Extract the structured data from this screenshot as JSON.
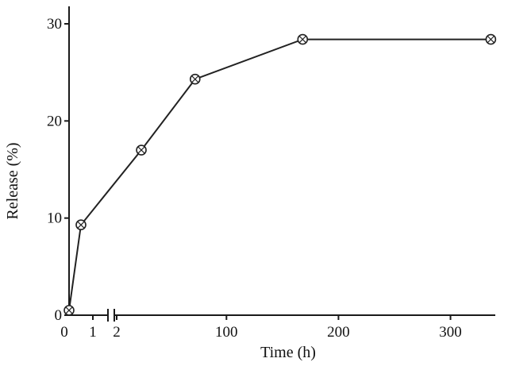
{
  "chart_data": {
    "type": "line",
    "title": "",
    "xlabel": "Time (h)",
    "ylabel": "Release (%)",
    "ylim": [
      0,
      30
    ],
    "yticks": [
      {
        "value": 0,
        "label": "0"
      },
      {
        "value": 10,
        "label": "10"
      },
      {
        "value": 20,
        "label": "20"
      },
      {
        "value": 30,
        "label": "30"
      }
    ],
    "x_axis": {
      "broken": true,
      "segments": [
        {
          "range": [
            0,
            2
          ],
          "ticks": [
            {
              "value": 0,
              "label": "0"
            },
            {
              "value": 1,
              "label": "1"
            },
            {
              "value": 2,
              "label": "2"
            }
          ]
        },
        {
          "range": [
            2,
            340
          ],
          "ticks": [
            {
              "value": 100,
              "label": "100"
            },
            {
              "value": 200,
              "label": "200"
            },
            {
              "value": 300,
              "label": "300"
            }
          ]
        }
      ]
    },
    "grid": false,
    "marker": "circle-cross",
    "line_color": "#222222",
    "series": [
      {
        "points": [
          {
            "x": 0,
            "y": 0.5
          },
          {
            "x": 0.5,
            "y": 9.3
          },
          {
            "x": 24,
            "y": 17.0
          },
          {
            "x": 72,
            "y": 24.3
          },
          {
            "x": 168,
            "y": 28.4
          },
          {
            "x": 336,
            "y": 28.4
          }
        ]
      }
    ]
  }
}
